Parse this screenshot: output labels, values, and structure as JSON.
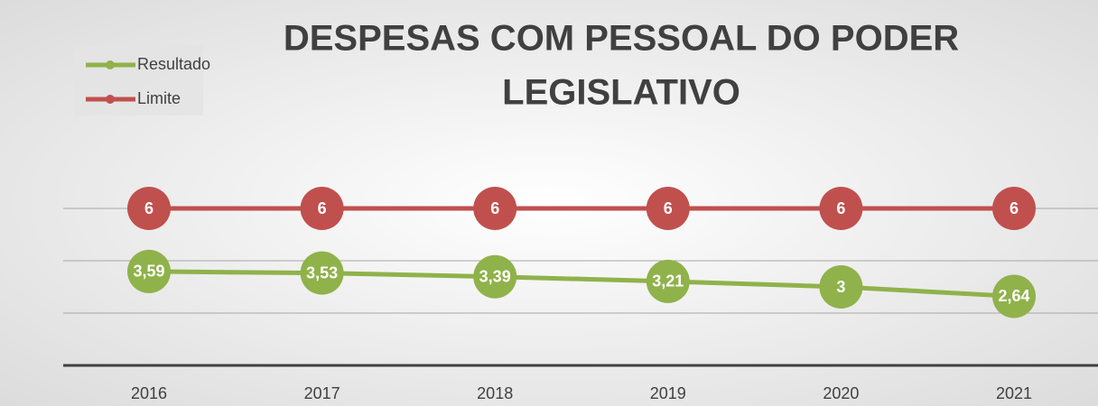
{
  "chart_data": {
    "type": "line",
    "title_lines": [
      "DESPESAS COM PESSOAL DO PODER",
      "LEGISLATIVO"
    ],
    "categories": [
      "2016",
      "2017",
      "2018",
      "2019",
      "2020",
      "2021"
    ],
    "series": [
      {
        "name": "Resultado",
        "color": "#8fb24a",
        "values": [
          3.59,
          3.53,
          3.39,
          3.21,
          3,
          2.64
        ],
        "value_labels": [
          "3,59",
          "3,53",
          "3,39",
          "3,21",
          "3",
          "2,64"
        ]
      },
      {
        "name": "Limite",
        "color": "#c0504d",
        "values": [
          6,
          6,
          6,
          6,
          6,
          6
        ]
      }
    ],
    "ylim": [
      0,
      8
    ],
    "yticks": [
      0,
      2,
      4,
      6
    ],
    "grid": true,
    "legend": "top-left"
  }
}
